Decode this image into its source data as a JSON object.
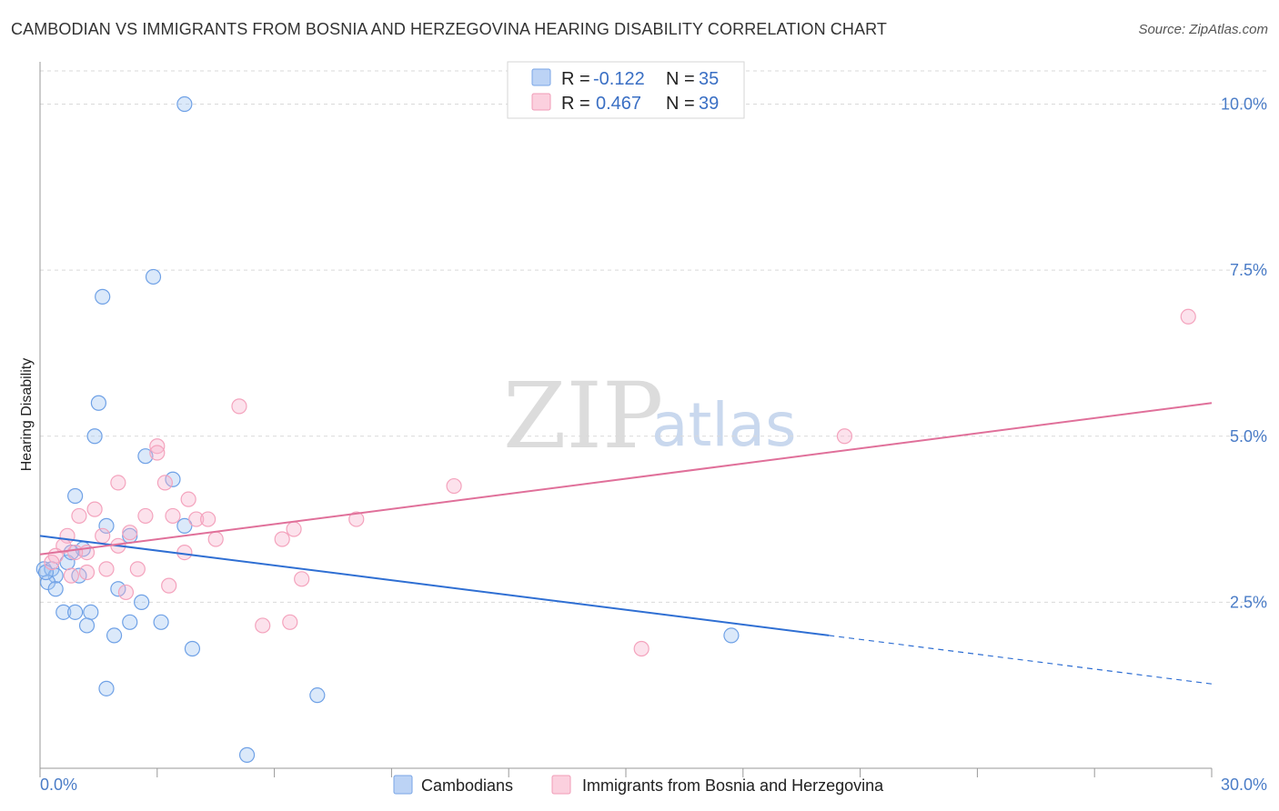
{
  "title": "CAMBODIAN VS IMMIGRANTS FROM BOSNIA AND HERZEGOVINA HEARING DISABILITY CORRELATION CHART",
  "source": "Source: ZipAtlas.com",
  "watermark": {
    "zip": "ZIP",
    "atlas": "atlas"
  },
  "legend": {
    "row1": {
      "r_label": "R =",
      "r_value": "-0.122",
      "n_label": "N =",
      "n_value": "35"
    },
    "row2": {
      "r_label": "R =",
      "r_value": "0.467",
      "n_label": "N =",
      "n_value": "39"
    }
  },
  "bottom_legend": {
    "series1": "Cambodians",
    "series2": "Immigrants from Bosnia and Herzegovina"
  },
  "chart_data": {
    "type": "scatter",
    "title": "CAMBODIAN VS IMMIGRANTS FROM BOSNIA AND HERZEGOVINA HEARING DISABILITY CORRELATION CHART",
    "xlabel": "",
    "ylabel": "Hearing Disability",
    "xlim": [
      0,
      30
    ],
    "ylim": [
      0,
      10.5
    ],
    "x_tick_labels": [
      "0.0%",
      "30.0%"
    ],
    "y_ticks": [
      2.5,
      5.0,
      7.5,
      10.0
    ],
    "y_tick_labels": [
      "2.5%",
      "5.0%",
      "7.5%",
      "10.0%"
    ],
    "grid": true,
    "legend_position": "top-center",
    "series": [
      {
        "name": "Cambodians",
        "color": "#6fa1e6",
        "line_color": "#2f6fd3",
        "R": -0.122,
        "N": 35,
        "trend": {
          "x0": 0.0,
          "y0": 3.5,
          "x_solid_end": 20.2,
          "y_solid_end": 2.0,
          "x1": 30.0,
          "y1": 1.27
        },
        "points": [
          [
            3.7,
            10.0
          ],
          [
            2.9,
            7.4
          ],
          [
            1.6,
            7.1
          ],
          [
            1.5,
            5.5
          ],
          [
            1.4,
            5.0
          ],
          [
            2.7,
            4.7
          ],
          [
            0.9,
            4.1
          ],
          [
            3.4,
            4.35
          ],
          [
            1.7,
            3.65
          ],
          [
            3.7,
            3.65
          ],
          [
            2.3,
            3.5
          ],
          [
            1.1,
            3.3
          ],
          [
            0.7,
            3.1
          ],
          [
            0.8,
            3.25
          ],
          [
            0.1,
            3.0
          ],
          [
            0.3,
            3.0
          ],
          [
            0.4,
            2.9
          ],
          [
            1.0,
            2.9
          ],
          [
            0.2,
            2.8
          ],
          [
            0.4,
            2.7
          ],
          [
            2.0,
            2.7
          ],
          [
            2.6,
            2.5
          ],
          [
            0.6,
            2.35
          ],
          [
            0.9,
            2.35
          ],
          [
            1.3,
            2.35
          ],
          [
            1.2,
            2.15
          ],
          [
            2.3,
            2.2
          ],
          [
            3.1,
            2.2
          ],
          [
            1.9,
            2.0
          ],
          [
            3.9,
            1.8
          ],
          [
            1.7,
            1.2
          ],
          [
            7.1,
            1.1
          ],
          [
            5.3,
            0.2
          ],
          [
            17.7,
            2.0
          ],
          [
            0.15,
            2.95
          ]
        ]
      },
      {
        "name": "Immigrants from Bosnia and Herzegovina",
        "color": "#f4a3bd",
        "line_color": "#e0709a",
        "R": 0.467,
        "N": 39,
        "trend": {
          "x0": 0.0,
          "y0": 3.22,
          "x1": 30.0,
          "y1": 5.5
        },
        "points": [
          [
            29.4,
            6.8
          ],
          [
            20.6,
            5.0
          ],
          [
            5.1,
            5.45
          ],
          [
            3.0,
            4.85
          ],
          [
            3.0,
            4.75
          ],
          [
            2.0,
            4.3
          ],
          [
            3.2,
            4.3
          ],
          [
            10.6,
            4.25
          ],
          [
            3.8,
            4.05
          ],
          [
            1.4,
            3.9
          ],
          [
            1.0,
            3.8
          ],
          [
            2.7,
            3.8
          ],
          [
            3.4,
            3.8
          ],
          [
            4.0,
            3.75
          ],
          [
            4.3,
            3.75
          ],
          [
            8.1,
            3.75
          ],
          [
            6.5,
            3.6
          ],
          [
            0.7,
            3.5
          ],
          [
            1.6,
            3.5
          ],
          [
            2.3,
            3.55
          ],
          [
            4.5,
            3.45
          ],
          [
            6.2,
            3.45
          ],
          [
            0.6,
            3.35
          ],
          [
            2.0,
            3.35
          ],
          [
            1.2,
            3.25
          ],
          [
            3.7,
            3.25
          ],
          [
            0.4,
            3.2
          ],
          [
            0.9,
            3.25
          ],
          [
            0.3,
            3.1
          ],
          [
            1.7,
            3.0
          ],
          [
            2.5,
            3.0
          ],
          [
            1.2,
            2.95
          ],
          [
            0.8,
            2.9
          ],
          [
            6.7,
            2.85
          ],
          [
            3.3,
            2.75
          ],
          [
            2.2,
            2.65
          ],
          [
            6.4,
            2.2
          ],
          [
            5.7,
            2.15
          ],
          [
            15.4,
            1.8
          ]
        ]
      }
    ]
  }
}
